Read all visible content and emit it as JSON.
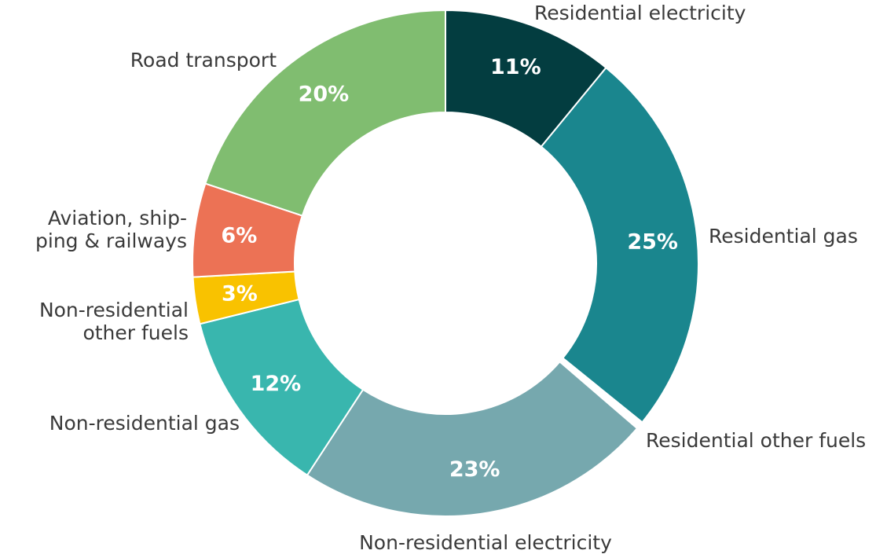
{
  "chart_data": {
    "type": "pie",
    "variant": "donut",
    "title": "",
    "legend": "none",
    "slices": [
      {
        "category": "Residential electricity",
        "value": 11,
        "value_label": "11%",
        "color": "#033d40"
      },
      {
        "category": "Residential gas",
        "value": 25,
        "value_label": "25%",
        "color": "#1a868e"
      },
      {
        "category": "Residential other fuels",
        "value": 0.5,
        "value_label": "",
        "color": "#ffffff"
      },
      {
        "category": "Non-residential electricity",
        "value": 23,
        "value_label": "23%",
        "color": "#76a8ae"
      },
      {
        "category": "Non-residential gas",
        "value": 12,
        "value_label": "12%",
        "color": "#39b6ae"
      },
      {
        "category": "Non-residential other fuels",
        "value": 3,
        "value_label": "3%",
        "color": "#f9c200"
      },
      {
        "category": "Aviation, ship-ping & railways",
        "value": 6,
        "value_label": "6%",
        "color": "#ec7255"
      },
      {
        "category": "Road transport",
        "value": 20,
        "value_label": "20%",
        "color": "#80bd70"
      }
    ],
    "category_labels": [
      {
        "lines": [
          "Residential electricity"
        ]
      },
      {
        "lines": [
          "Residential gas"
        ]
      },
      {
        "lines": [
          "Residential other fuels"
        ]
      },
      {
        "lines": [
          "Non-residential electricity"
        ]
      },
      {
        "lines": [
          "Non-residential gas"
        ]
      },
      {
        "lines": [
          "Non-residential",
          "other fuels"
        ]
      },
      {
        "lines": [
          "Aviation, ship-",
          "ping & railways"
        ]
      },
      {
        "lines": [
          "Road transport"
        ]
      }
    ]
  }
}
